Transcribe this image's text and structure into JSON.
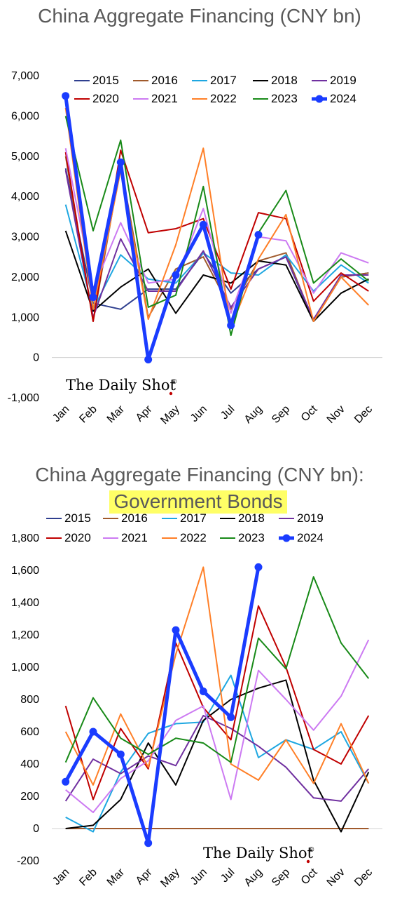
{
  "brand": "The Daily Shot",
  "brand_mark": "®",
  "chart_data": [
    {
      "type": "line",
      "title": "China Aggregate Financing (CNY bn)",
      "subtitle": "",
      "ylim": [
        -1000,
        7000
      ],
      "yticks": [
        -1000,
        0,
        1000,
        2000,
        3000,
        4000,
        5000,
        6000,
        7000
      ],
      "yticklabels": [
        "-1,000",
        "0",
        "1,000",
        "2,000",
        "3,000",
        "4,000",
        "5,000",
        "6,000",
        "7,000"
      ],
      "categories": [
        "Jan",
        "Feb",
        "Mar",
        "Apr",
        "May",
        "Jun",
        "Jul",
        "Aug",
        "Sep",
        "Oct",
        "Nov",
        "Dec"
      ],
      "grid": false,
      "legend": "top",
      "series": [
        {
          "name": "2015",
          "color": "#2f3f8f",
          "values": [
            4700,
            1350,
            1200,
            1700,
            1700,
            2600,
            1600,
            2200,
            2500,
            900,
            2000,
            2100
          ]
        },
        {
          "name": "2016",
          "color": "#a05a2c",
          "values": [
            5000,
            900,
            4800,
            1000,
            2200,
            2500,
            1200,
            2400,
            2600,
            900,
            2000,
            2100
          ]
        },
        {
          "name": "2017",
          "color": "#1ea7e1",
          "values": [
            3800,
            1200,
            2550,
            1950,
            1850,
            2600,
            2100,
            2050,
            2550,
            1650,
            2300,
            1850
          ]
        },
        {
          "name": "2018",
          "color": "#000000",
          "values": [
            3150,
            1150,
            1750,
            2200,
            1100,
            2050,
            1850,
            2400,
            2300,
            900,
            1600,
            1950
          ]
        },
        {
          "name": "2019",
          "color": "#7030a0",
          "values": [
            4650,
            1000,
            2950,
            1650,
            1650,
            2650,
            1250,
            2200,
            2500,
            950,
            2050,
            2050
          ]
        },
        {
          "name": "2020",
          "color": "#c00000",
          "values": [
            5100,
            900,
            5150,
            3100,
            3200,
            3450,
            1700,
            3600,
            3450,
            1400,
            2100,
            1650
          ]
        },
        {
          "name": "2021",
          "color": "#cc7af2",
          "values": [
            5200,
            1700,
            3350,
            1850,
            1950,
            3700,
            1100,
            3000,
            2900,
            1600,
            2600,
            2350
          ]
        },
        {
          "name": "2022",
          "color": "#ff7f27",
          "values": [
            6200,
            1200,
            4650,
            950,
            2800,
            5200,
            750,
            2450,
            3550,
            900,
            2000,
            1300
          ]
        },
        {
          "name": "2023",
          "color": "#188a18",
          "values": [
            6000,
            3150,
            5400,
            1250,
            1550,
            4250,
            550,
            3100,
            4150,
            1850,
            2450,
            1900
          ]
        },
        {
          "name": "2024",
          "color": "#1a3cff",
          "values": [
            6500,
            1500,
            4850,
            -50,
            2050,
            3300,
            800,
            3050,
            null,
            null,
            null,
            null
          ]
        }
      ]
    },
    {
      "type": "line",
      "title": "China Aggregate Financing (CNY bn):",
      "subtitle": "Government Bonds",
      "ylim": [
        -200,
        1800
      ],
      "yticks": [
        -200,
        0,
        200,
        400,
        600,
        800,
        1000,
        1200,
        1400,
        1600,
        1800
      ],
      "yticklabels": [
        "-200",
        "0",
        "200",
        "400",
        "600",
        "800",
        "1,000",
        "1,200",
        "1,400",
        "1,600",
        "1,800"
      ],
      "categories": [
        "Jan",
        "Feb",
        "Mar",
        "Apr",
        "May",
        "Jun",
        "Jul",
        "Aug",
        "Sep",
        "Oct",
        "Nov",
        "Dec"
      ],
      "grid": false,
      "legend": "top",
      "series": [
        {
          "name": "2015",
          "color": "#2f3f8f",
          "values": [
            0,
            0,
            0,
            0,
            0,
            0,
            0,
            0,
            0,
            0,
            0,
            0
          ]
        },
        {
          "name": "2016",
          "color": "#a05a2c",
          "values": [
            0,
            0,
            0,
            0,
            0,
            0,
            0,
            0,
            0,
            0,
            0,
            0
          ]
        },
        {
          "name": "2017",
          "color": "#1ea7e1",
          "values": [
            70,
            -20,
            350,
            590,
            650,
            660,
            950,
            440,
            550,
            490,
            600,
            280
          ]
        },
        {
          "name": "2018",
          "color": "#000000",
          "values": [
            0,
            20,
            180,
            530,
            270,
            670,
            800,
            870,
            920,
            300,
            -20,
            350
          ]
        },
        {
          "name": "2019",
          "color": "#7030a0",
          "values": [
            170,
            430,
            340,
            450,
            390,
            700,
            620,
            510,
            380,
            190,
            170,
            370
          ]
        },
        {
          "name": "2020",
          "color": "#c00000",
          "values": [
            760,
            180,
            620,
            370,
            1150,
            750,
            550,
            1380,
            1000,
            490,
            400,
            700
          ]
        },
        {
          "name": "2021",
          "color": "#cc7af2",
          "values": [
            240,
            100,
            310,
            420,
            670,
            760,
            180,
            980,
            800,
            610,
            820,
            1170
          ]
        },
        {
          "name": "2022",
          "color": "#ff7f27",
          "values": [
            600,
            270,
            710,
            380,
            1080,
            1620,
            400,
            300,
            550,
            280,
            650,
            280
          ]
        },
        {
          "name": "2023",
          "color": "#188a18",
          "values": [
            410,
            810,
            560,
            460,
            560,
            530,
            410,
            1180,
            990,
            1560,
            1150,
            930
          ]
        },
        {
          "name": "2024",
          "color": "#1a3cff",
          "values": [
            290,
            600,
            460,
            -90,
            1230,
            850,
            690,
            1620,
            null,
            null,
            null,
            null
          ]
        }
      ]
    }
  ]
}
